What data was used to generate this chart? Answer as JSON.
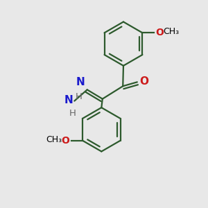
{
  "background_color": "#e8e8e8",
  "bond_color": "#2d5a2d",
  "atom_colors": {
    "N": "#1a1acc",
    "O": "#cc1a1a",
    "H": "#666666"
  },
  "figsize": [
    3.0,
    3.0
  ],
  "dpi": 100,
  "xlim": [
    -1.6,
    1.6
  ],
  "ylim": [
    -2.0,
    2.0
  ]
}
